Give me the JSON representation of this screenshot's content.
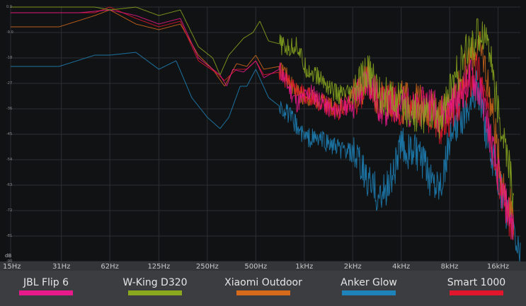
{
  "chart_data": {
    "type": "line",
    "xscale": "log",
    "xlim": [
      15,
      22000
    ],
    "ylim": [
      -90,
      0
    ],
    "ylabel": "dB",
    "xticks": [
      {
        "label": "15Hz",
        "value": 15
      },
      {
        "label": "31Hz",
        "value": 31
      },
      {
        "label": "62Hz",
        "value": 62
      },
      {
        "label": "125Hz",
        "value": 125
      },
      {
        "label": "250Hz",
        "value": 250
      },
      {
        "label": "500Hz",
        "value": 500
      },
      {
        "label": "1kHz",
        "value": 1000
      },
      {
        "label": "2kHz",
        "value": 2000
      },
      {
        "label": "4kHz",
        "value": 4000
      },
      {
        "label": "8kHz",
        "value": 8000
      },
      {
        "label": "16kHz",
        "value": 16000
      }
    ],
    "yticks": [
      {
        "label": "0.0",
        "value": 0
      },
      {
        "label": "-9.0",
        "value": -9
      },
      {
        "label": "-18",
        "value": -18
      },
      {
        "label": "-27",
        "value": -27
      },
      {
        "label": "-36",
        "value": -36
      },
      {
        "label": "-45",
        "value": -45
      },
      {
        "label": "-54",
        "value": -54
      },
      {
        "label": "-63",
        "value": -63
      },
      {
        "label": "-72",
        "value": -72
      },
      {
        "label": "-81",
        "value": -81
      },
      {
        "label": "-90",
        "value": -90
      }
    ],
    "grid": true,
    "legend_position": "bottom",
    "series": [
      {
        "name": "JBL Flip 6",
        "color": "#e8198a",
        "points": [
          [
            15,
            -2
          ],
          [
            40,
            -2
          ],
          [
            62,
            -1
          ],
          [
            90,
            -3
          ],
          [
            125,
            -6
          ],
          [
            170,
            -4
          ],
          [
            220,
            -18
          ],
          [
            300,
            -24
          ],
          [
            330,
            -28
          ],
          [
            360,
            -22
          ],
          [
            420,
            -23
          ],
          [
            500,
            -19
          ],
          [
            560,
            -25
          ],
          [
            700,
            -22
          ],
          [
            900,
            -34
          ],
          [
            1100,
            -30
          ],
          [
            1500,
            -37
          ],
          [
            2000,
            -34
          ],
          [
            2500,
            -25
          ],
          [
            3000,
            -36
          ],
          [
            4000,
            -34
          ],
          [
            5000,
            -37
          ],
          [
            6000,
            -33
          ],
          [
            7000,
            -38
          ],
          [
            9000,
            -32
          ],
          [
            11000,
            -24
          ],
          [
            13000,
            -34
          ],
          [
            15000,
            -52
          ],
          [
            17000,
            -66
          ],
          [
            20000,
            -78
          ]
        ]
      },
      {
        "name": "W-King D320",
        "color": "#8aa81e",
        "points": [
          [
            15,
            0
          ],
          [
            30,
            0
          ],
          [
            50,
            0
          ],
          [
            62,
            -1
          ],
          [
            90,
            0
          ],
          [
            125,
            -3
          ],
          [
            170,
            -1
          ],
          [
            220,
            -14
          ],
          [
            270,
            -18
          ],
          [
            300,
            -24
          ],
          [
            340,
            -17
          ],
          [
            420,
            -11
          ],
          [
            480,
            -9
          ],
          [
            530,
            -5
          ],
          [
            600,
            -12
          ],
          [
            700,
            -13
          ],
          [
            800,
            -15
          ],
          [
            900,
            -13
          ],
          [
            1000,
            -21
          ],
          [
            1300,
            -26
          ],
          [
            1600,
            -31
          ],
          [
            2000,
            -31
          ],
          [
            2500,
            -23
          ],
          [
            3000,
            -31
          ],
          [
            4000,
            -34
          ],
          [
            5000,
            -38
          ],
          [
            6000,
            -38
          ],
          [
            7000,
            -40
          ],
          [
            8000,
            -30
          ],
          [
            10000,
            -17
          ],
          [
            12000,
            -10
          ],
          [
            13000,
            -9
          ],
          [
            14000,
            -12
          ],
          [
            16000,
            -38
          ],
          [
            17500,
            -48
          ],
          [
            19000,
            -58
          ],
          [
            20000,
            -70
          ]
        ]
      },
      {
        "name": "Xiaomi Outdoor",
        "color": "#d56a1a",
        "points": [
          [
            15,
            -7
          ],
          [
            30,
            -7
          ],
          [
            50,
            -3
          ],
          [
            62,
            -1
          ],
          [
            90,
            -6
          ],
          [
            125,
            -8
          ],
          [
            170,
            -6
          ],
          [
            220,
            -17
          ],
          [
            270,
            -22
          ],
          [
            320,
            -28
          ],
          [
            380,
            -20
          ],
          [
            440,
            -21
          ],
          [
            500,
            -17
          ],
          [
            560,
            -22
          ],
          [
            700,
            -21
          ],
          [
            900,
            -30
          ],
          [
            1200,
            -33
          ],
          [
            1600,
            -36
          ],
          [
            2000,
            -31
          ],
          [
            2500,
            -27
          ],
          [
            3000,
            -33
          ],
          [
            4000,
            -33
          ],
          [
            5000,
            -33
          ],
          [
            6000,
            -36
          ],
          [
            7000,
            -38
          ],
          [
            8000,
            -36
          ],
          [
            10000,
            -22
          ],
          [
            12000,
            -14
          ],
          [
            13000,
            -18
          ],
          [
            15000,
            -40
          ],
          [
            17000,
            -62
          ],
          [
            20000,
            -74
          ]
        ]
      },
      {
        "name": "Anker Glow",
        "color": "#1d83b8",
        "points": [
          [
            15,
            -21
          ],
          [
            30,
            -21
          ],
          [
            50,
            -17
          ],
          [
            62,
            -17
          ],
          [
            90,
            -16
          ],
          [
            125,
            -22
          ],
          [
            160,
            -19
          ],
          [
            200,
            -32
          ],
          [
            250,
            -39
          ],
          [
            300,
            -43
          ],
          [
            340,
            -39
          ],
          [
            400,
            -28
          ],
          [
            440,
            -28
          ],
          [
            500,
            -22
          ],
          [
            600,
            -32
          ],
          [
            700,
            -35
          ],
          [
            800,
            -38
          ],
          [
            1000,
            -46
          ],
          [
            1300,
            -47
          ],
          [
            1600,
            -50
          ],
          [
            2000,
            -52
          ],
          [
            2500,
            -62
          ],
          [
            3000,
            -68
          ],
          [
            3500,
            -60
          ],
          [
            4000,
            -49
          ],
          [
            5000,
            -52
          ],
          [
            6000,
            -60
          ],
          [
            7000,
            -62
          ],
          [
            8000,
            -48
          ],
          [
            10000,
            -36
          ],
          [
            12000,
            -28
          ],
          [
            13000,
            -40
          ],
          [
            15000,
            -55
          ],
          [
            18000,
            -72
          ],
          [
            20000,
            -80
          ],
          [
            22000,
            -88
          ]
        ]
      },
      {
        "name": "Smart 1000",
        "color": "#e1162c",
        "points": [
          [
            15,
            -2
          ],
          [
            30,
            -2
          ],
          [
            50,
            -2
          ],
          [
            62,
            0
          ],
          [
            90,
            -4
          ],
          [
            125,
            -7
          ],
          [
            170,
            -5
          ],
          [
            220,
            -19
          ],
          [
            280,
            -23
          ],
          [
            320,
            -26
          ],
          [
            380,
            -22
          ],
          [
            440,
            -22
          ],
          [
            500,
            -19
          ],
          [
            560,
            -24
          ],
          [
            700,
            -23
          ],
          [
            900,
            -30
          ],
          [
            1200,
            -33
          ],
          [
            1600,
            -37
          ],
          [
            2000,
            -33
          ],
          [
            2500,
            -26
          ],
          [
            3000,
            -34
          ],
          [
            4000,
            -35
          ],
          [
            5000,
            -34
          ],
          [
            6000,
            -38
          ],
          [
            7000,
            -42
          ],
          [
            8000,
            -39
          ],
          [
            10000,
            -30
          ],
          [
            12000,
            -22
          ],
          [
            13000,
            -30
          ],
          [
            15000,
            -50
          ],
          [
            17000,
            -66
          ],
          [
            19000,
            -76
          ],
          [
            20000,
            -80
          ]
        ]
      }
    ]
  }
}
